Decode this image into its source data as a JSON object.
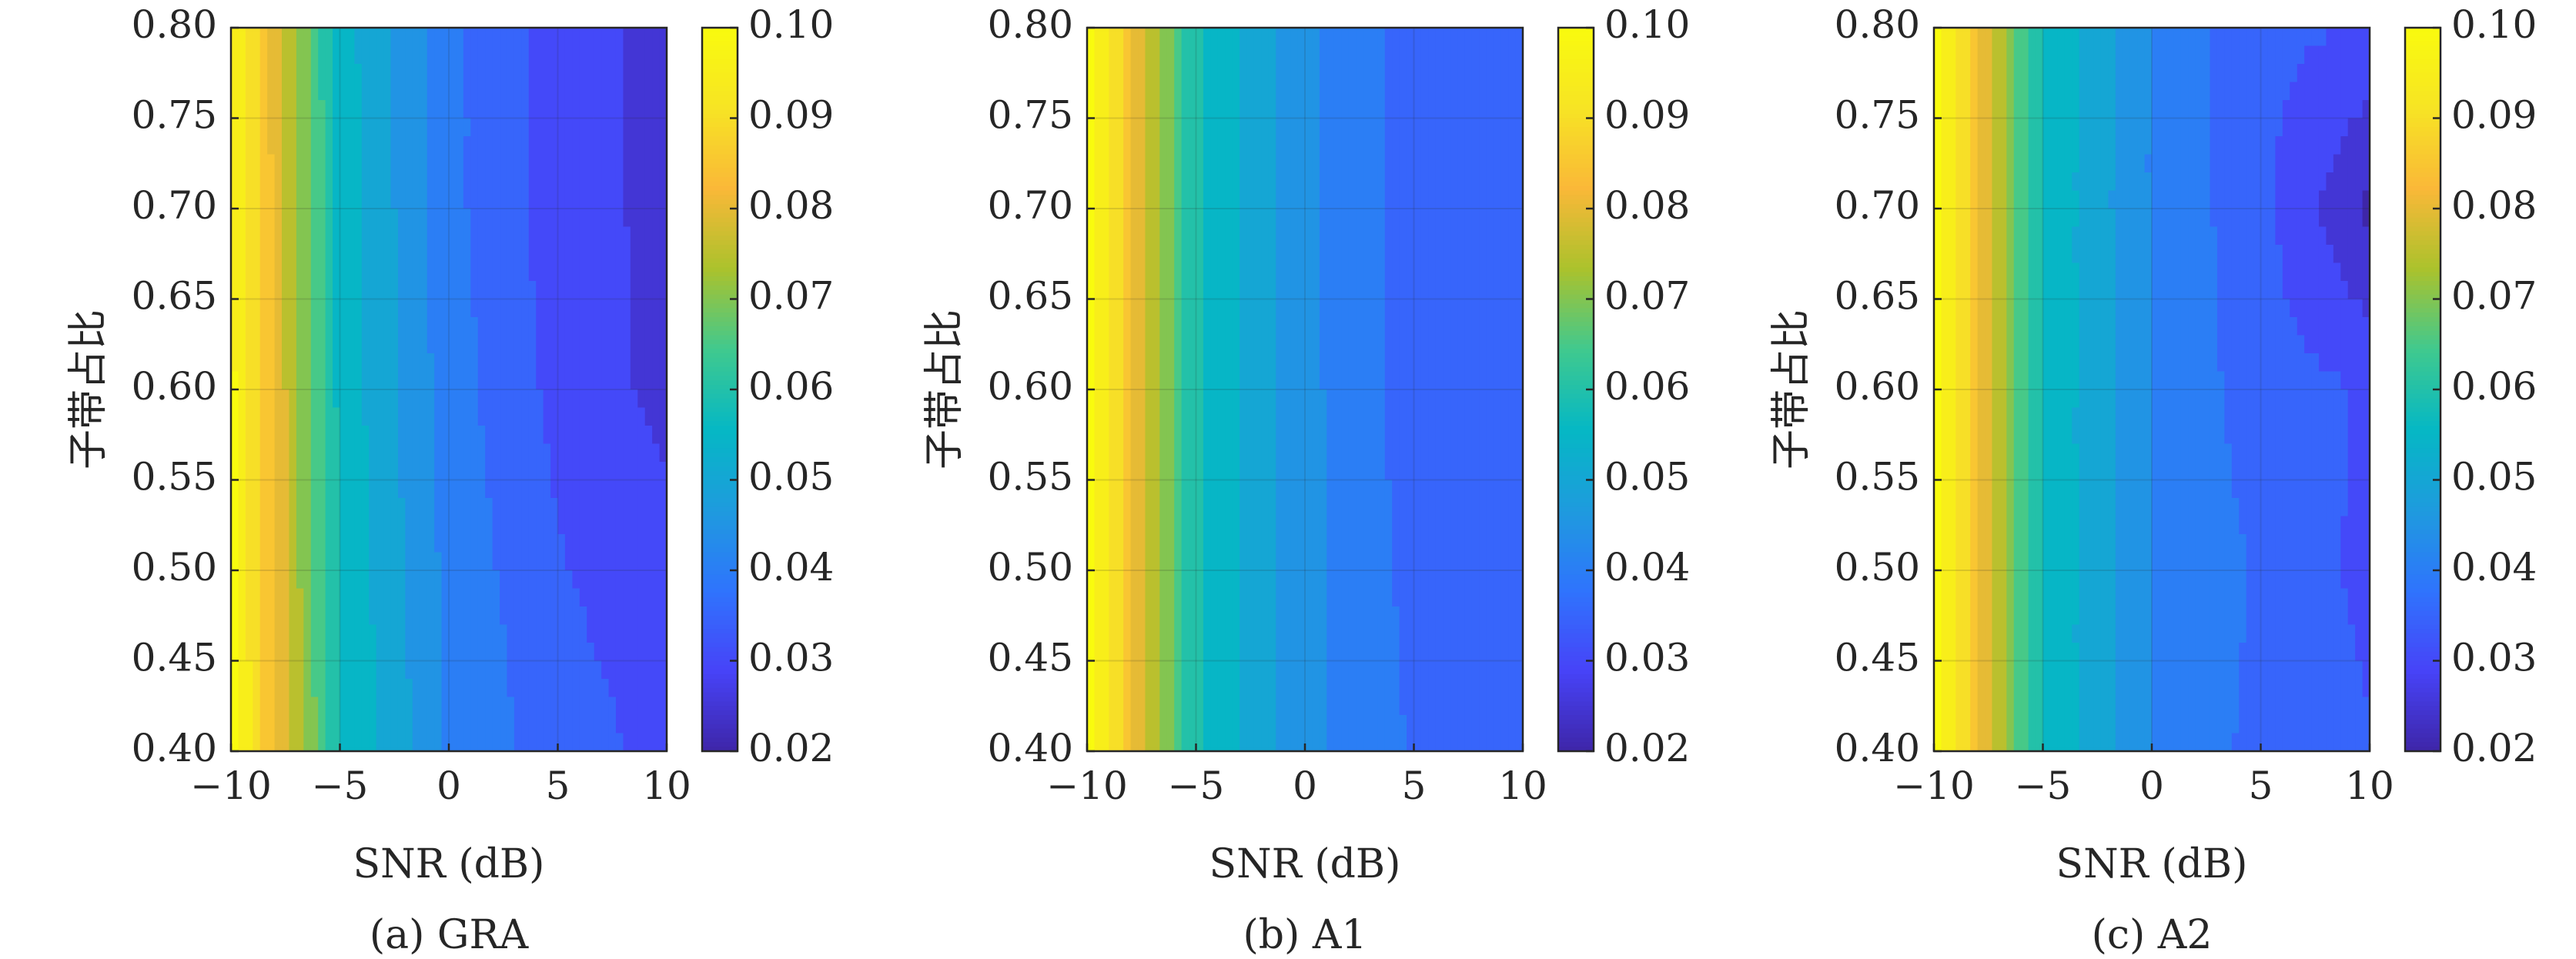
{
  "figure": {
    "background": "#ffffff",
    "grid": true
  },
  "colormap": [
    "#3e26a8",
    "#4743f8",
    "#2f74fd",
    "#1e9bde",
    "#05b8c4",
    "#40c98e",
    "#abc22c",
    "#fab838",
    "#f7e424",
    "#f9fb0e"
  ],
  "chart_data": [
    {
      "type": "heatmap",
      "caption": "(a) GRA",
      "xlabel": "SNR (dB)",
      "ylabel": "子带占比",
      "xlim": [
        -10,
        10
      ],
      "ylim": [
        0.4,
        0.8
      ],
      "x": [
        -10,
        -5,
        0,
        5,
        10
      ],
      "y": [
        0.4,
        0.5,
        0.6,
        0.7,
        0.8
      ],
      "xticks": [
        "−10",
        "−5",
        "0",
        "5",
        "10"
      ],
      "yticks": [
        "0.40",
        "0.45",
        "0.50",
        "0.55",
        "0.60",
        "0.65",
        "0.70",
        "0.75",
        "0.80"
      ],
      "colorbar": {
        "range": [
          0.02,
          0.1
        ],
        "ticks": [
          "0.02",
          "0.03",
          "0.04",
          "0.05",
          "0.06",
          "0.07",
          "0.08",
          "0.09",
          "0.10"
        ]
      },
      "z": [
        [
          0.1,
          0.058,
          0.042,
          0.035,
          0.031
        ],
        [
          0.099,
          0.057,
          0.041,
          0.033,
          0.029
        ],
        [
          0.099,
          0.056,
          0.04,
          0.031,
          0.026
        ],
        [
          0.098,
          0.056,
          0.039,
          0.03,
          0.026
        ],
        [
          0.098,
          0.055,
          0.039,
          0.03,
          0.026
        ]
      ]
    },
    {
      "type": "heatmap",
      "caption": "(b) A1",
      "xlabel": "SNR (dB)",
      "ylabel": "子带占比",
      "xlim": [
        -10,
        10
      ],
      "ylim": [
        0.4,
        0.8
      ],
      "x": [
        -10,
        -5,
        0,
        5,
        10
      ],
      "y": [
        0.4,
        0.5,
        0.6,
        0.7,
        0.8
      ],
      "xticks": [
        "−10",
        "−5",
        "0",
        "5",
        "10"
      ],
      "yticks": [
        "0.40",
        "0.45",
        "0.50",
        "0.55",
        "0.60",
        "0.65",
        "0.70",
        "0.75",
        "0.80"
      ],
      "colorbar": {
        "range": [
          0.02,
          0.1
        ],
        "ticks": [
          "0.02",
          "0.03",
          "0.04",
          "0.05",
          "0.06",
          "0.07",
          "0.08",
          "0.09",
          "0.10"
        ]
      },
      "z": [
        [
          0.101,
          0.058,
          0.044,
          0.037,
          0.035
        ],
        [
          0.101,
          0.058,
          0.044,
          0.036,
          0.034
        ],
        [
          0.101,
          0.058,
          0.044,
          0.035,
          0.034
        ],
        [
          0.101,
          0.058,
          0.044,
          0.035,
          0.034
        ],
        [
          0.101,
          0.058,
          0.044,
          0.035,
          0.034
        ]
      ]
    },
    {
      "type": "heatmap",
      "caption": "(c) A2",
      "xlabel": "SNR (dB)",
      "ylabel": "子带占比",
      "xlim": [
        -10,
        10
      ],
      "ylim": [
        0.4,
        0.8
      ],
      "x": [
        -10,
        -5,
        0,
        5,
        10
      ],
      "y": [
        0.4,
        0.5,
        0.6,
        0.7,
        0.8
      ],
      "xticks": [
        "−10",
        "−5",
        "0",
        "5",
        "10"
      ],
      "yticks": [
        "0.40",
        "0.45",
        "0.50",
        "0.55",
        "0.60",
        "0.65",
        "0.70",
        "0.75",
        "0.80"
      ],
      "colorbar": {
        "range": [
          0.02,
          0.1
        ],
        "ticks": [
          "0.02",
          "0.03",
          "0.04",
          "0.05",
          "0.06",
          "0.07",
          "0.08",
          "0.09",
          "0.10"
        ]
      },
      "z": [
        [
          0.101,
          0.057,
          0.042,
          0.036,
          0.033
        ],
        [
          0.101,
          0.057,
          0.042,
          0.037,
          0.031
        ],
        [
          0.101,
          0.057,
          0.042,
          0.035,
          0.032
        ],
        [
          0.101,
          0.057,
          0.042,
          0.034,
          0.021
        ],
        [
          0.101,
          0.057,
          0.042,
          0.034,
          0.032
        ]
      ]
    }
  ]
}
